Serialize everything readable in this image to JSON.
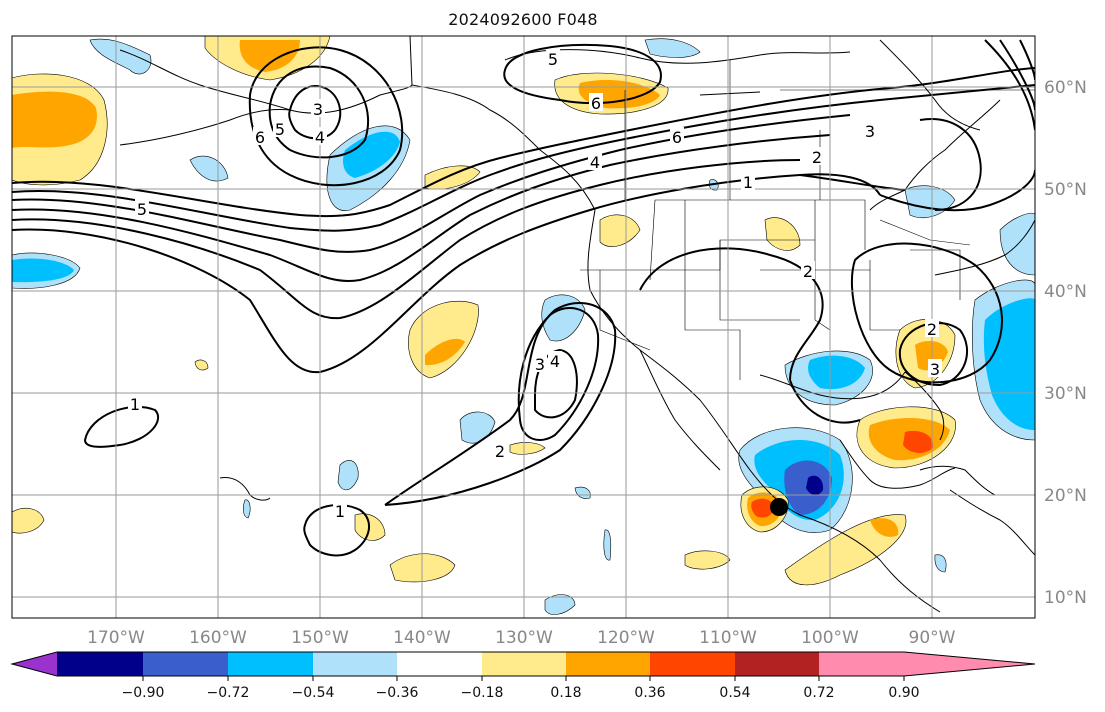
{
  "title": "2024092600 F048",
  "longitude_labels": [
    "170°W",
    "160°W",
    "150°W",
    "140°W",
    "130°W",
    "120°W",
    "110°W",
    "100°W",
    "90°W"
  ],
  "latitude_labels": [
    "60°N",
    "50°N",
    "40°N",
    "30°N",
    "20°N",
    "10°N"
  ],
  "colorbar": {
    "tick_labels": [
      "−0.90",
      "−0.72",
      "−0.54",
      "−0.36",
      "−0.18",
      "0.18",
      "0.36",
      "0.54",
      "0.72",
      "0.90"
    ],
    "colors": [
      "#9a32cd",
      "#00008b",
      "#3a5fcd",
      "#00bfff",
      "#afe1fa",
      "#ffffff",
      "#ffea8c",
      "#ffa500",
      "#ff4500",
      "#b22222",
      "#ff8caf"
    ]
  },
  "contour_labels": [
    {
      "id": "c1",
      "text": "1"
    },
    {
      "id": "c2",
      "text": "1"
    },
    {
      "id": "c3",
      "text": "1"
    },
    {
      "id": "c4",
      "text": "2"
    },
    {
      "id": "c5",
      "text": "2"
    },
    {
      "id": "c6",
      "text": "2"
    },
    {
      "id": "c7",
      "text": "2"
    },
    {
      "id": "c8",
      "text": "3"
    },
    {
      "id": "c9",
      "text": "3"
    },
    {
      "id": "c10",
      "text": "3"
    },
    {
      "id": "c11",
      "text": "3"
    },
    {
      "id": "c12",
      "text": "4"
    },
    {
      "id": "c13",
      "text": "4"
    },
    {
      "id": "c14",
      "text": "4"
    },
    {
      "id": "c15",
      "text": "5"
    },
    {
      "id": "c16",
      "text": "5"
    },
    {
      "id": "c17",
      "text": "5"
    },
    {
      "id": "c18",
      "text": "6"
    },
    {
      "id": "c19",
      "text": "6"
    },
    {
      "id": "c20",
      "text": "6"
    }
  ],
  "marker": {
    "name": "storm-center-marker",
    "color": "#000000"
  }
}
